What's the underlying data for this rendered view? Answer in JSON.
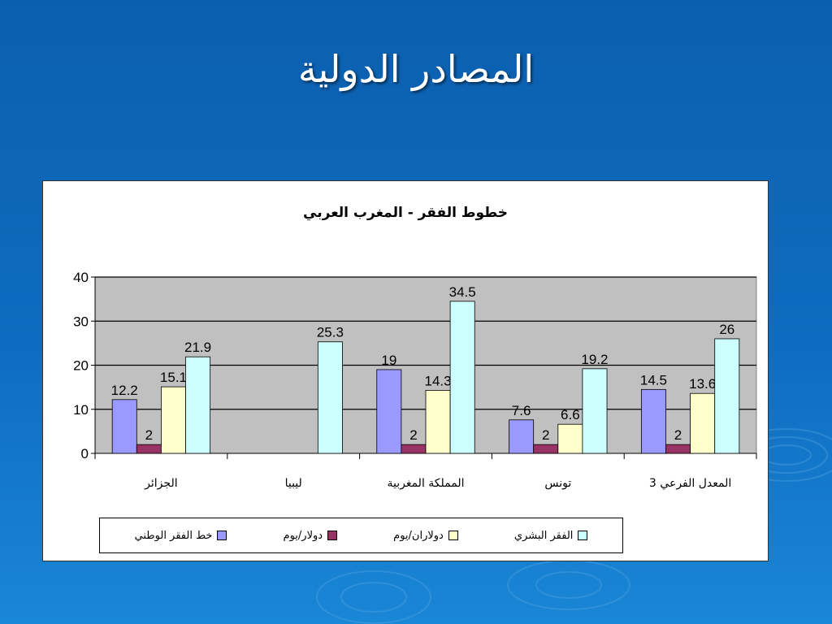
{
  "slide": {
    "title": "المصادر الدولية"
  },
  "chart_data": {
    "type": "bar",
    "title": "خطوط الفقر - المغرب العربي",
    "categories": [
      "الجزائر",
      "ليبيا",
      "المملكة المغربية",
      "تونس",
      "المعدل الفرعي 3"
    ],
    "ylim": [
      0,
      40
    ],
    "yticks": [
      0,
      10,
      20,
      30,
      40
    ],
    "grid": true,
    "legend_position": "bottom",
    "plot_background": "#c0c0c0",
    "series": [
      {
        "name": "خط الفقر الوطني",
        "color": "#9999ff",
        "values": [
          12.2,
          null,
          19,
          7.6,
          14.5
        ]
      },
      {
        "name": "دولار/يوم",
        "color": "#993366",
        "values": [
          2,
          null,
          2,
          2,
          2
        ]
      },
      {
        "name": "دولاران/يوم",
        "color": "#ffffcc",
        "values": [
          15.1,
          null,
          14.3,
          6.6,
          13.6
        ]
      },
      {
        "name": "الفقر البشري",
        "color": "#ccffff",
        "values": [
          21.9,
          25.3,
          34.5,
          19.2,
          26
        ]
      }
    ]
  }
}
